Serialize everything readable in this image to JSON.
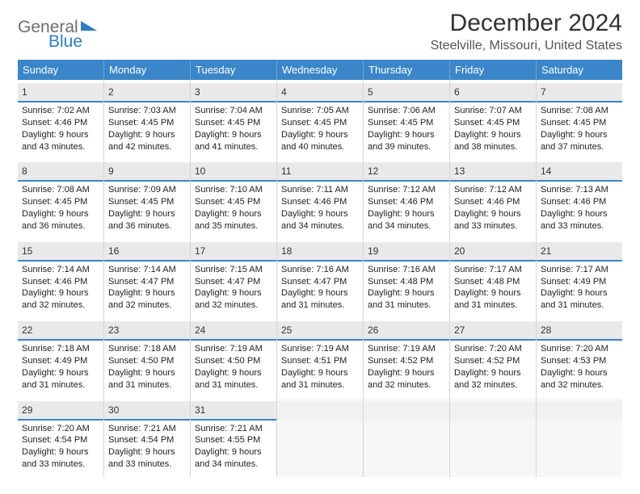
{
  "logo": {
    "text_general": "General",
    "text_blue": "Blue",
    "general_color": "#6e6e6e",
    "blue_color": "#2f7fc2",
    "triangle_color": "#2f7fc2"
  },
  "header": {
    "title": "December 2024",
    "subtitle": "Steelville, Missouri, United States"
  },
  "calendar": {
    "type": "table",
    "header_bg": "#3a86c8",
    "header_text_color": "#ffffff",
    "daynum_bg": "#e9e9e9",
    "divider_color": "#3a86c8",
    "cell_border_color": "#d6d6d6",
    "text_color": "#222222",
    "font_size_header": 13,
    "font_size_daynum": 12,
    "font_size_body": 11,
    "days": [
      "Sunday",
      "Monday",
      "Tuesday",
      "Wednesday",
      "Thursday",
      "Friday",
      "Saturday"
    ],
    "weeks": [
      [
        {
          "n": "1",
          "sunrise": "Sunrise: 7:02 AM",
          "sunset": "Sunset: 4:46 PM",
          "day1": "Daylight: 9 hours",
          "day2": "and 43 minutes."
        },
        {
          "n": "2",
          "sunrise": "Sunrise: 7:03 AM",
          "sunset": "Sunset: 4:45 PM",
          "day1": "Daylight: 9 hours",
          "day2": "and 42 minutes."
        },
        {
          "n": "3",
          "sunrise": "Sunrise: 7:04 AM",
          "sunset": "Sunset: 4:45 PM",
          "day1": "Daylight: 9 hours",
          "day2": "and 41 minutes."
        },
        {
          "n": "4",
          "sunrise": "Sunrise: 7:05 AM",
          "sunset": "Sunset: 4:45 PM",
          "day1": "Daylight: 9 hours",
          "day2": "and 40 minutes."
        },
        {
          "n": "5",
          "sunrise": "Sunrise: 7:06 AM",
          "sunset": "Sunset: 4:45 PM",
          "day1": "Daylight: 9 hours",
          "day2": "and 39 minutes."
        },
        {
          "n": "6",
          "sunrise": "Sunrise: 7:07 AM",
          "sunset": "Sunset: 4:45 PM",
          "day1": "Daylight: 9 hours",
          "day2": "and 38 minutes."
        },
        {
          "n": "7",
          "sunrise": "Sunrise: 7:08 AM",
          "sunset": "Sunset: 4:45 PM",
          "day1": "Daylight: 9 hours",
          "day2": "and 37 minutes."
        }
      ],
      [
        {
          "n": "8",
          "sunrise": "Sunrise: 7:08 AM",
          "sunset": "Sunset: 4:45 PM",
          "day1": "Daylight: 9 hours",
          "day2": "and 36 minutes."
        },
        {
          "n": "9",
          "sunrise": "Sunrise: 7:09 AM",
          "sunset": "Sunset: 4:45 PM",
          "day1": "Daylight: 9 hours",
          "day2": "and 36 minutes."
        },
        {
          "n": "10",
          "sunrise": "Sunrise: 7:10 AM",
          "sunset": "Sunset: 4:45 PM",
          "day1": "Daylight: 9 hours",
          "day2": "and 35 minutes."
        },
        {
          "n": "11",
          "sunrise": "Sunrise: 7:11 AM",
          "sunset": "Sunset: 4:46 PM",
          "day1": "Daylight: 9 hours",
          "day2": "and 34 minutes."
        },
        {
          "n": "12",
          "sunrise": "Sunrise: 7:12 AM",
          "sunset": "Sunset: 4:46 PM",
          "day1": "Daylight: 9 hours",
          "day2": "and 34 minutes."
        },
        {
          "n": "13",
          "sunrise": "Sunrise: 7:12 AM",
          "sunset": "Sunset: 4:46 PM",
          "day1": "Daylight: 9 hours",
          "day2": "and 33 minutes."
        },
        {
          "n": "14",
          "sunrise": "Sunrise: 7:13 AM",
          "sunset": "Sunset: 4:46 PM",
          "day1": "Daylight: 9 hours",
          "day2": "and 33 minutes."
        }
      ],
      [
        {
          "n": "15",
          "sunrise": "Sunrise: 7:14 AM",
          "sunset": "Sunset: 4:46 PM",
          "day1": "Daylight: 9 hours",
          "day2": "and 32 minutes."
        },
        {
          "n": "16",
          "sunrise": "Sunrise: 7:14 AM",
          "sunset": "Sunset: 4:47 PM",
          "day1": "Daylight: 9 hours",
          "day2": "and 32 minutes."
        },
        {
          "n": "17",
          "sunrise": "Sunrise: 7:15 AM",
          "sunset": "Sunset: 4:47 PM",
          "day1": "Daylight: 9 hours",
          "day2": "and 32 minutes."
        },
        {
          "n": "18",
          "sunrise": "Sunrise: 7:16 AM",
          "sunset": "Sunset: 4:47 PM",
          "day1": "Daylight: 9 hours",
          "day2": "and 31 minutes."
        },
        {
          "n": "19",
          "sunrise": "Sunrise: 7:16 AM",
          "sunset": "Sunset: 4:48 PM",
          "day1": "Daylight: 9 hours",
          "day2": "and 31 minutes."
        },
        {
          "n": "20",
          "sunrise": "Sunrise: 7:17 AM",
          "sunset": "Sunset: 4:48 PM",
          "day1": "Daylight: 9 hours",
          "day2": "and 31 minutes."
        },
        {
          "n": "21",
          "sunrise": "Sunrise: 7:17 AM",
          "sunset": "Sunset: 4:49 PM",
          "day1": "Daylight: 9 hours",
          "day2": "and 31 minutes."
        }
      ],
      [
        {
          "n": "22",
          "sunrise": "Sunrise: 7:18 AM",
          "sunset": "Sunset: 4:49 PM",
          "day1": "Daylight: 9 hours",
          "day2": "and 31 minutes."
        },
        {
          "n": "23",
          "sunrise": "Sunrise: 7:18 AM",
          "sunset": "Sunset: 4:50 PM",
          "day1": "Daylight: 9 hours",
          "day2": "and 31 minutes."
        },
        {
          "n": "24",
          "sunrise": "Sunrise: 7:19 AM",
          "sunset": "Sunset: 4:50 PM",
          "day1": "Daylight: 9 hours",
          "day2": "and 31 minutes."
        },
        {
          "n": "25",
          "sunrise": "Sunrise: 7:19 AM",
          "sunset": "Sunset: 4:51 PM",
          "day1": "Daylight: 9 hours",
          "day2": "and 31 minutes."
        },
        {
          "n": "26",
          "sunrise": "Sunrise: 7:19 AM",
          "sunset": "Sunset: 4:52 PM",
          "day1": "Daylight: 9 hours",
          "day2": "and 32 minutes."
        },
        {
          "n": "27",
          "sunrise": "Sunrise: 7:20 AM",
          "sunset": "Sunset: 4:52 PM",
          "day1": "Daylight: 9 hours",
          "day2": "and 32 minutes."
        },
        {
          "n": "28",
          "sunrise": "Sunrise: 7:20 AM",
          "sunset": "Sunset: 4:53 PM",
          "day1": "Daylight: 9 hours",
          "day2": "and 32 minutes."
        }
      ],
      [
        {
          "n": "29",
          "sunrise": "Sunrise: 7:20 AM",
          "sunset": "Sunset: 4:54 PM",
          "day1": "Daylight: 9 hours",
          "day2": "and 33 minutes."
        },
        {
          "n": "30",
          "sunrise": "Sunrise: 7:21 AM",
          "sunset": "Sunset: 4:54 PM",
          "day1": "Daylight: 9 hours",
          "day2": "and 33 minutes."
        },
        {
          "n": "31",
          "sunrise": "Sunrise: 7:21 AM",
          "sunset": "Sunset: 4:55 PM",
          "day1": "Daylight: 9 hours",
          "day2": "and 34 minutes."
        },
        {
          "blank": true
        },
        {
          "blank": true
        },
        {
          "blank": true
        },
        {
          "blank": true
        }
      ]
    ]
  }
}
